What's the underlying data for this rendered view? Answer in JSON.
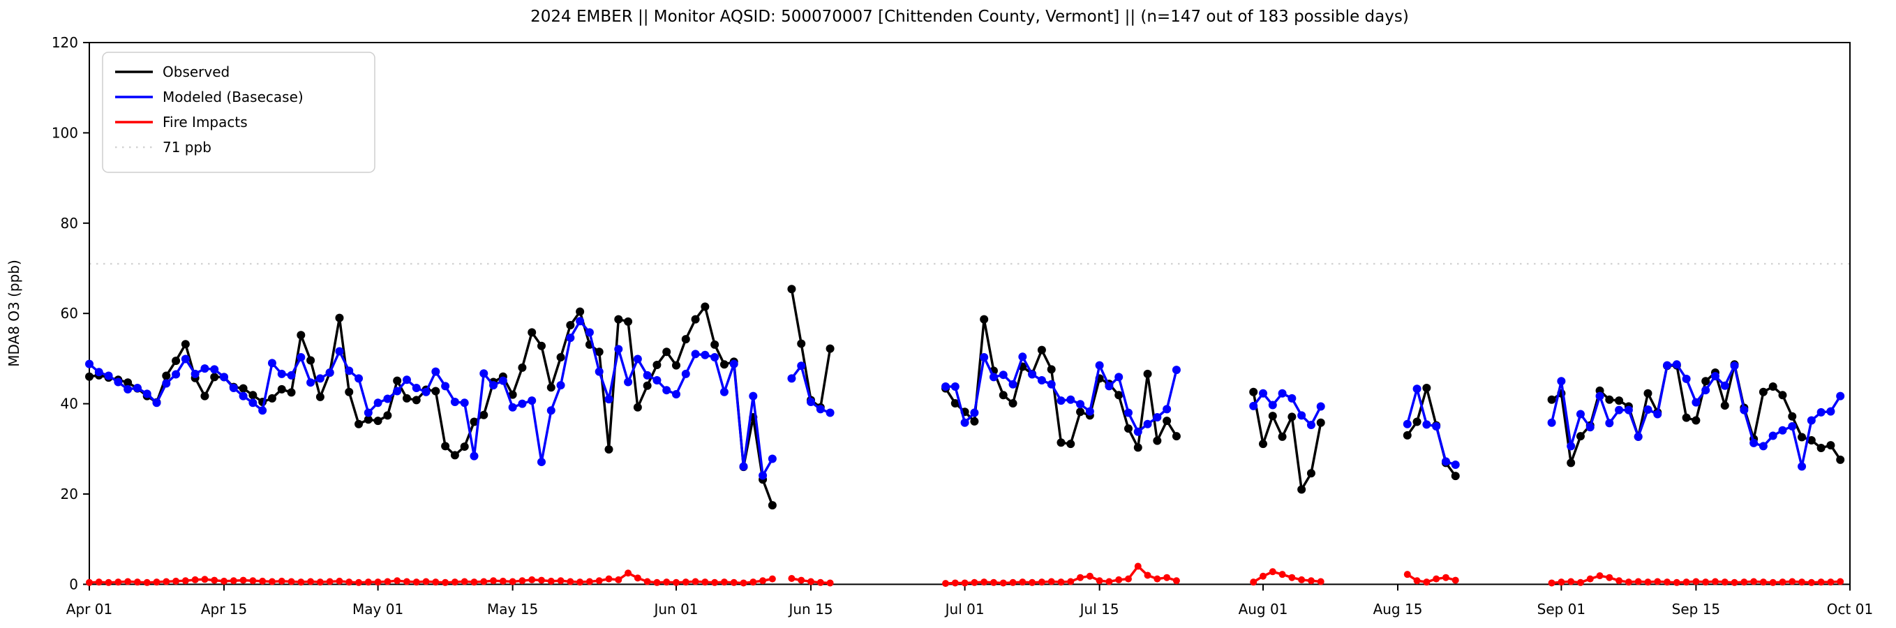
{
  "title": "2024 EMBER || Monitor AQSID: 500070007 [Chittenden County, Vermont] || (n=147 out of 183 possible days)",
  "colors": {
    "observed": "#000000",
    "modeled": "#0000ff",
    "fire": "#ff0000",
    "threshold": "#d3d3d3",
    "spine": "#000000",
    "legend_border": "#cccccc"
  },
  "chart_data": {
    "type": "line",
    "title": "2024 EMBER || Monitor AQSID: 500070007 [Chittenden County, Vermont] || (n=147 out of 183 possible days)",
    "xlabel": "",
    "ylabel": "MDA8 O3 (ppb)",
    "ylim": [
      0,
      120
    ],
    "yticks": [
      0,
      20,
      40,
      60,
      80,
      100,
      120
    ],
    "x_is_days_from": "Apr 01",
    "n_days": 183,
    "xticks": [
      {
        "label": "Apr 01",
        "day": 0
      },
      {
        "label": "Apr 15",
        "day": 14
      },
      {
        "label": "May 01",
        "day": 30
      },
      {
        "label": "May 15",
        "day": 44
      },
      {
        "label": "Jun 01",
        "day": 61
      },
      {
        "label": "Jun 15",
        "day": 75
      },
      {
        "label": "Jul 01",
        "day": 91
      },
      {
        "label": "Jul 15",
        "day": 105
      },
      {
        "label": "Aug 01",
        "day": 122
      },
      {
        "label": "Aug 15",
        "day": 136
      },
      {
        "label": "Sep 01",
        "day": 153
      },
      {
        "label": "Sep 15",
        "day": 167
      },
      {
        "label": "Oct 01",
        "day": 183
      }
    ],
    "threshold_line": {
      "value": 71,
      "label": "71 ppb"
    },
    "grid": false,
    "legend_position": "upper-left",
    "series": [
      {
        "name": "Observed",
        "color": "#000000",
        "values": [
          46.0,
          46.3,
          45.8,
          45.3,
          44.7,
          43.4,
          41.7,
          40.3,
          46.2,
          49.5,
          53.2,
          45.7,
          41.7,
          45.9,
          45.9,
          43.7,
          43.4,
          41.9,
          40.4,
          41.2,
          43.2,
          42.5,
          55.2,
          49.6,
          41.5,
          46.9,
          59.0,
          42.6,
          35.5,
          36.5,
          36.2,
          37.4,
          45.1,
          41.2,
          40.8,
          43.1,
          42.8,
          30.6,
          28.6,
          30.5,
          36.0,
          37.5,
          44.8,
          46.0,
          42.0,
          48.0,
          55.8,
          52.8,
          43.6,
          50.3,
          57.4,
          60.4,
          53.1,
          51.5,
          29.9,
          58.7,
          58.2,
          39.2,
          44.0,
          48.6,
          51.5,
          48.5,
          54.3,
          58.7,
          61.5,
          53.1,
          48.7,
          49.3,
          26.0,
          37.0,
          23.2,
          17.5,
          null,
          65.4,
          53.3,
          40.8,
          39.2,
          52.2,
          null,
          null,
          null,
          null,
          null,
          null,
          null,
          null,
          null,
          null,
          null,
          43.4,
          40.1,
          38.2,
          36.1,
          58.7,
          47.3,
          41.9,
          40.1,
          48.2,
          46.6,
          51.9,
          47.6,
          31.4,
          31.1,
          38.2,
          37.4,
          45.6,
          44.4,
          41.9,
          34.5,
          30.3,
          46.6,
          31.8,
          36.2,
          32.8,
          null,
          null,
          null,
          null,
          null,
          null,
          null,
          42.6,
          31.1,
          37.3,
          32.7,
          37.1,
          21.0,
          24.6,
          35.8,
          null,
          null,
          null,
          null,
          null,
          null,
          null,
          null,
          33.0,
          36.0,
          43.5,
          35.2,
          26.9,
          24.0,
          null,
          null,
          null,
          null,
          null,
          null,
          null,
          null,
          null,
          40.9,
          42.3,
          26.9,
          32.8,
          35.2,
          42.9,
          40.9,
          40.7,
          39.4,
          32.7,
          42.3,
          38.1,
          48.4,
          48.5,
          36.9,
          36.3,
          45.0,
          46.9,
          39.6,
          48.7,
          39.1,
          32.2,
          42.6,
          43.8,
          41.9,
          37.2,
          32.6,
          31.9,
          30.2,
          30.8,
          27.6
        ]
      },
      {
        "name": "Modeled (Basecase)",
        "color": "#0000ff",
        "values": [
          48.8,
          47.0,
          46.2,
          44.8,
          43.2,
          43.5,
          42.2,
          40.2,
          44.5,
          46.5,
          49.9,
          46.6,
          47.8,
          47.6,
          45.9,
          43.5,
          41.7,
          40.2,
          38.5,
          49.0,
          46.6,
          46.3,
          50.3,
          44.7,
          45.6,
          46.9,
          51.6,
          47.3,
          45.6,
          38.0,
          40.2,
          41.1,
          42.8,
          45.3,
          43.5,
          42.6,
          47.1,
          43.9,
          40.4,
          40.2,
          28.4,
          46.7,
          44.1,
          45.1,
          39.2,
          40.0,
          40.7,
          27.1,
          38.5,
          44.1,
          54.6,
          58.3,
          55.8,
          47.1,
          41.0,
          52.1,
          44.8,
          49.9,
          46.3,
          45.2,
          43.0,
          42.1,
          46.6,
          51.0,
          50.8,
          50.3,
          42.6,
          48.8,
          26.1,
          41.7,
          24.1,
          27.8,
          null,
          45.6,
          48.4,
          40.4,
          38.8,
          38.0,
          null,
          null,
          null,
          null,
          null,
          null,
          null,
          null,
          null,
          null,
          null,
          43.8,
          43.8,
          35.8,
          38.0,
          50.3,
          45.9,
          46.4,
          44.3,
          50.4,
          46.5,
          45.2,
          44.3,
          40.7,
          40.9,
          39.9,
          38.3,
          48.5,
          43.9,
          45.9,
          38.0,
          33.8,
          35.5,
          37.0,
          38.8,
          47.5,
          null,
          null,
          null,
          null,
          null,
          null,
          null,
          39.5,
          42.3,
          39.7,
          42.3,
          41.2,
          37.4,
          35.3,
          39.4,
          null,
          null,
          null,
          null,
          null,
          null,
          null,
          null,
          35.5,
          43.3,
          35.4,
          35.0,
          27.2,
          26.5,
          null,
          null,
          null,
          null,
          null,
          null,
          null,
          null,
          null,
          35.8,
          45.0,
          30.6,
          37.7,
          34.8,
          41.7,
          35.7,
          38.6,
          38.6,
          32.7,
          38.7,
          37.7,
          48.5,
          48.7,
          45.5,
          40.3,
          43.0,
          46.1,
          44.0,
          48.4,
          38.6,
          31.3,
          30.6,
          32.9,
          34.1,
          35.0,
          26.1,
          36.3,
          38.1,
          38.3,
          41.7
        ]
      },
      {
        "name": "Fire Impacts",
        "color": "#ff0000",
        "values": [
          0.4,
          0.5,
          0.4,
          0.5,
          0.6,
          0.5,
          0.4,
          0.5,
          0.6,
          0.7,
          0.8,
          1.0,
          1.1,
          0.9,
          0.7,
          0.8,
          0.9,
          0.8,
          0.7,
          0.6,
          0.7,
          0.6,
          0.5,
          0.6,
          0.5,
          0.6,
          0.7,
          0.5,
          0.4,
          0.5,
          0.5,
          0.6,
          0.8,
          0.6,
          0.5,
          0.6,
          0.5,
          0.4,
          0.5,
          0.6,
          0.5,
          0.6,
          0.8,
          0.7,
          0.6,
          0.8,
          1.0,
          0.9,
          0.7,
          0.8,
          0.6,
          0.5,
          0.6,
          0.8,
          1.2,
          1.0,
          2.5,
          1.4,
          0.6,
          0.4,
          0.5,
          0.4,
          0.5,
          0.6,
          0.5,
          0.4,
          0.5,
          0.4,
          0.3,
          0.5,
          0.8,
          1.2,
          null,
          1.3,
          0.9,
          0.6,
          0.4,
          0.3,
          null,
          null,
          null,
          null,
          null,
          null,
          null,
          null,
          null,
          null,
          null,
          0.2,
          0.3,
          0.3,
          0.4,
          0.5,
          0.4,
          0.3,
          0.4,
          0.5,
          0.4,
          0.5,
          0.6,
          0.5,
          0.6,
          1.5,
          1.8,
          0.8,
          0.6,
          1.0,
          1.2,
          4.0,
          2.0,
          1.2,
          1.5,
          0.8,
          null,
          null,
          null,
          null,
          null,
          null,
          null,
          0.5,
          1.8,
          2.8,
          2.2,
          1.5,
          1.0,
          0.8,
          0.6,
          null,
          null,
          null,
          null,
          null,
          null,
          null,
          null,
          2.2,
          0.8,
          0.5,
          1.2,
          1.5,
          0.9,
          null,
          null,
          null,
          null,
          null,
          null,
          null,
          null,
          null,
          0.3,
          0.5,
          0.6,
          0.4,
          1.2,
          1.9,
          1.5,
          0.8,
          0.5,
          0.6,
          0.5,
          0.6,
          0.5,
          0.4,
          0.5,
          0.6,
          0.5,
          0.6,
          0.5,
          0.4,
          0.5,
          0.6,
          0.5,
          0.4,
          0.5,
          0.6,
          0.5,
          0.4,
          0.5,
          0.5,
          0.6
        ]
      }
    ],
    "legend_entries": [
      "Observed",
      "Modeled (Basecase)",
      "Fire Impacts",
      "71 ppb"
    ]
  }
}
